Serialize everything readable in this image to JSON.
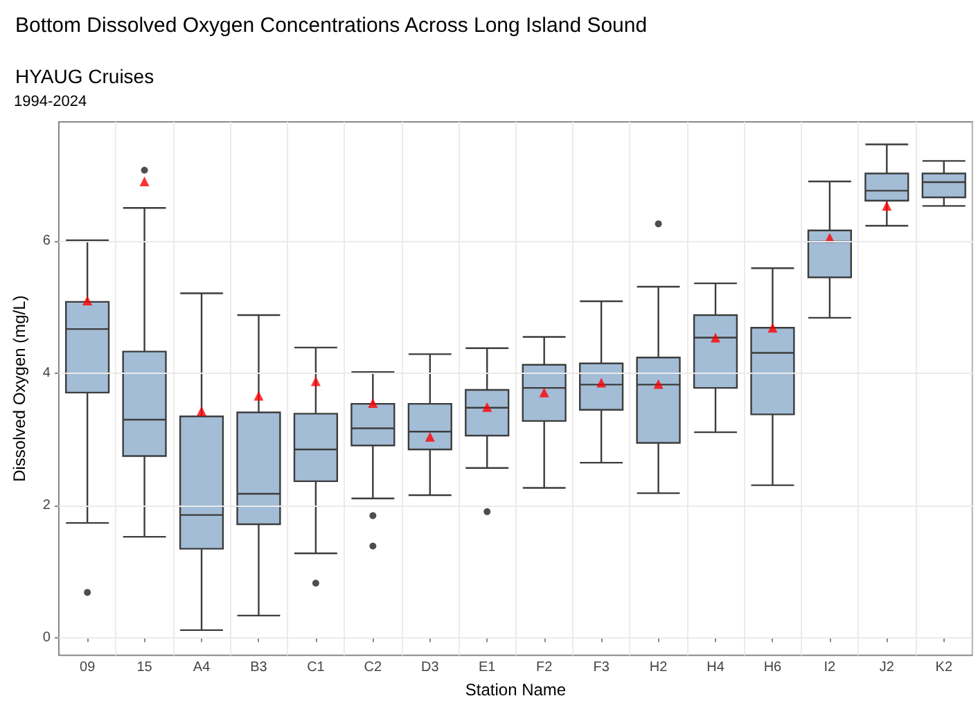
{
  "chart_data": {
    "type": "box",
    "title": "Bottom Dissolved Oxygen Concentrations Across Long Island Sound",
    "subtitle": "HYAUG Cruises",
    "annotations": [
      "1994-2024"
    ],
    "xlabel": "Station Name",
    "ylabel": "Dissolved Oxygen (mg/L)",
    "categories": [
      "09",
      "15",
      "A4",
      "B3",
      "C1",
      "C2",
      "D3",
      "E1",
      "F2",
      "F3",
      "H2",
      "H4",
      "H6",
      "I2",
      "J2",
      "K2"
    ],
    "ylim": [
      -0.26,
      7.8
    ],
    "yticks": [
      0,
      2,
      4,
      6
    ],
    "grid": true,
    "series": [
      {
        "type": "box",
        "color": "#a3bdd6",
        "boxes": [
          {
            "low": 1.74,
            "q1": 3.71,
            "median": 4.67,
            "q3": 5.08,
            "high": 6.01,
            "outliers": [
              0.69
            ]
          },
          {
            "low": 1.53,
            "q1": 2.75,
            "median": 3.3,
            "q3": 4.33,
            "high": 6.5,
            "outliers": [
              7.07
            ]
          },
          {
            "low": 0.12,
            "q1": 1.35,
            "median": 1.86,
            "q3": 3.35,
            "high": 5.21
          },
          {
            "low": 0.34,
            "q1": 1.72,
            "median": 2.18,
            "q3": 3.41,
            "high": 4.88
          },
          {
            "low": 1.28,
            "q1": 2.37,
            "median": 2.85,
            "q3": 3.39,
            "high": 4.39,
            "outliers": [
              0.83
            ]
          },
          {
            "low": 2.11,
            "q1": 2.91,
            "median": 3.17,
            "q3": 3.54,
            "high": 4.02,
            "outliers": [
              1.85,
              1.39
            ]
          },
          {
            "low": 2.16,
            "q1": 2.85,
            "median": 3.12,
            "q3": 3.54,
            "high": 4.29
          },
          {
            "low": 2.57,
            "q1": 3.06,
            "median": 3.48,
            "q3": 3.75,
            "high": 4.38,
            "outliers": [
              1.91
            ]
          },
          {
            "low": 2.27,
            "q1": 3.28,
            "median": 3.78,
            "q3": 4.13,
            "high": 4.55
          },
          {
            "low": 2.65,
            "q1": 3.45,
            "median": 3.83,
            "q3": 4.15,
            "high": 5.09
          },
          {
            "low": 2.19,
            "q1": 2.95,
            "median": 3.83,
            "q3": 4.24,
            "high": 5.31,
            "outliers": [
              6.26
            ]
          },
          {
            "low": 3.11,
            "q1": 3.78,
            "median": 4.54,
            "q3": 4.88,
            "high": 5.36
          },
          {
            "low": 2.31,
            "q1": 3.38,
            "median": 4.31,
            "q3": 4.69,
            "high": 5.59
          },
          {
            "low": 4.84,
            "q1": 5.45,
            "median": 5.99,
            "q3": 6.16,
            "high": 6.9
          },
          {
            "low": 6.23,
            "q1": 6.61,
            "median": 6.76,
            "q3": 7.02,
            "high": 7.46
          },
          {
            "low": 6.53,
            "q1": 6.66,
            "median": 6.89,
            "q3": 7.02,
            "high": 7.21
          }
        ]
      },
      {
        "type": "scatter",
        "color": "#ff0000",
        "marker": "triangle",
        "x": [
          "09",
          "15",
          "A4",
          "B3",
          "C1",
          "C2",
          "D3",
          "E1",
          "F2",
          "F3",
          "H2",
          "H4",
          "H6",
          "I2",
          "J2"
        ],
        "values": [
          5.1,
          6.9,
          3.43,
          3.66,
          3.88,
          3.55,
          3.04,
          3.49,
          3.71,
          3.86,
          3.84,
          4.54,
          4.69,
          6.05,
          6.53
        ]
      }
    ]
  }
}
